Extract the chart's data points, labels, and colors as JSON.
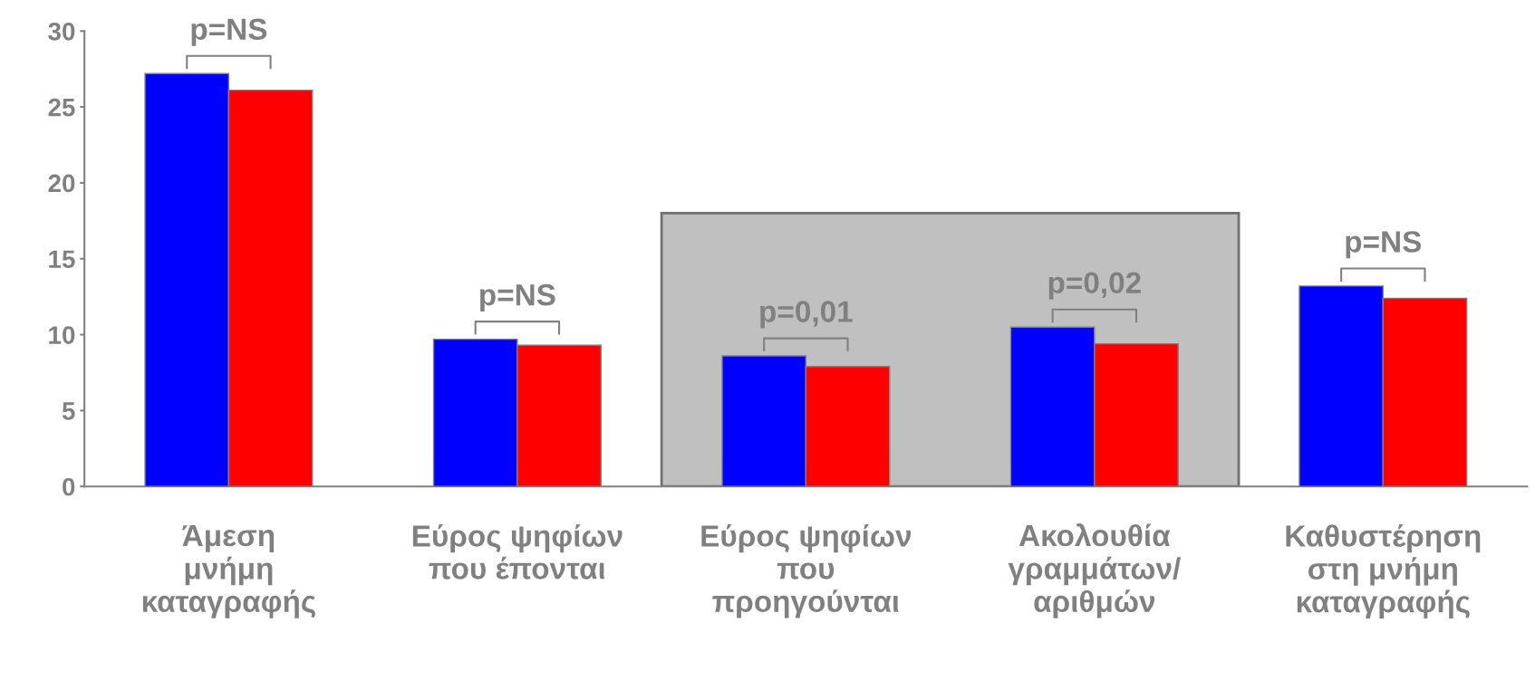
{
  "chart_data": {
    "type": "bar",
    "categories": [
      "Άμεση\nμνήμη\nκαταγραφής",
      "Εύρος ψηφίων\nπου έπονται",
      "Εύρος ψηφίων\nπου\nπροηγούνται",
      "Ακολουθία\nγραμμάτων/\nαριθμών",
      "Καθυστέρηση\nστη μνήμη\nκαταγραφής"
    ],
    "series": [
      {
        "color": "#0000ff",
        "values": [
          27.2,
          9.7,
          8.6,
          10.5,
          13.2
        ]
      },
      {
        "color": "#ff0000",
        "values": [
          26.1,
          9.3,
          7.9,
          9.4,
          12.4
        ]
      }
    ],
    "ylim": [
      0,
      30
    ],
    "yticks": [
      0,
      5,
      10,
      15,
      20,
      25,
      30
    ],
    "grid": false,
    "legend": false,
    "bands": [
      {
        "axis": "x",
        "from": "Εύρος ψηφίων\nπου\nπροηγούνται",
        "to": "Ακολουθία\nγραμμάτων/\nαριθμών",
        "color": "#c0c0c0"
      }
    ],
    "annotations": [
      "p=NS",
      "p=NS",
      "p=0,01",
      "p=0,02",
      "p=NS"
    ]
  }
}
